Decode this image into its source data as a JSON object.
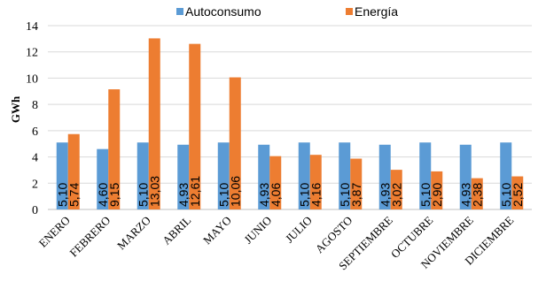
{
  "chart_data": {
    "type": "bar",
    "title": "",
    "xlabel": "",
    "ylabel": "GWh",
    "ylim": [
      0,
      14
    ],
    "yticks": [
      0,
      2,
      4,
      6,
      8,
      10,
      12,
      14
    ],
    "grid": true,
    "legend_position": "top",
    "categories": [
      "ENERO",
      "FEBRERO",
      "MARZO",
      "ABRIL",
      "MAYO",
      "JUNIO",
      "JULIO",
      "AGOSTO",
      "SEPTIEMBRE",
      "OCTUBRE",
      "NOVIEMBRE",
      "DICIEMBRE"
    ],
    "series": [
      {
        "name": "Autoconsumo",
        "color": "#5b9bd5",
        "values": [
          5.1,
          4.6,
          5.1,
          4.93,
          5.1,
          4.93,
          5.1,
          5.1,
          4.93,
          5.1,
          4.93,
          5.1
        ],
        "labels": [
          "5,10",
          "4,60",
          "5,10",
          "4,93",
          "5,10",
          "4,93",
          "5,10",
          "5,10",
          "4,93",
          "5,10",
          "4,93",
          "5,10"
        ]
      },
      {
        "name": "Energía",
        "color": "#ed7d31",
        "values": [
          5.74,
          9.15,
          13.03,
          12.61,
          10.06,
          4.06,
          4.16,
          3.87,
          3.02,
          2.9,
          2.38,
          2.52
        ],
        "labels": [
          "5,74",
          "9,15",
          "13,03",
          "12,61",
          "10,06",
          "4,06",
          "4,16",
          "3,87",
          "3,02",
          "2,90",
          "2,38",
          "2,52"
        ]
      }
    ]
  }
}
